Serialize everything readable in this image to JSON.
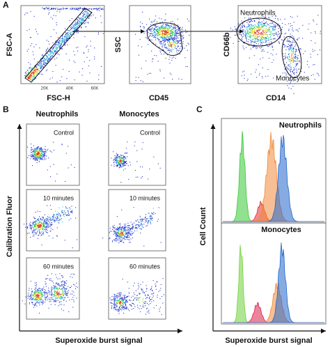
{
  "panel_a": {
    "label": "A",
    "plot1": {
      "y_label": "FSC-A",
      "x_label": "FSC-H",
      "x_ticks": [
        "20K",
        "40K",
        "60K"
      ]
    },
    "plot2": {
      "y_label": "SSC",
      "x_label": "CD45"
    },
    "plot3": {
      "y_label": "CD66b",
      "x_label": "CD14",
      "gates": [
        "Neutrophils",
        "Monocytes"
      ]
    }
  },
  "panel_b": {
    "label": "B",
    "columns": [
      "Neutrophils",
      "Monocytes"
    ],
    "conditions": [
      "Control",
      "10 minutes",
      "60 minutes"
    ],
    "y_label": "Calibration Fluor",
    "x_label": "Superoxide burst signal"
  },
  "panel_c": {
    "label": "C",
    "histograms": [
      "Neutrophils",
      "Monocytes"
    ],
    "y_label": "Cell Count",
    "x_label": "Superoxide burst signal"
  }
}
